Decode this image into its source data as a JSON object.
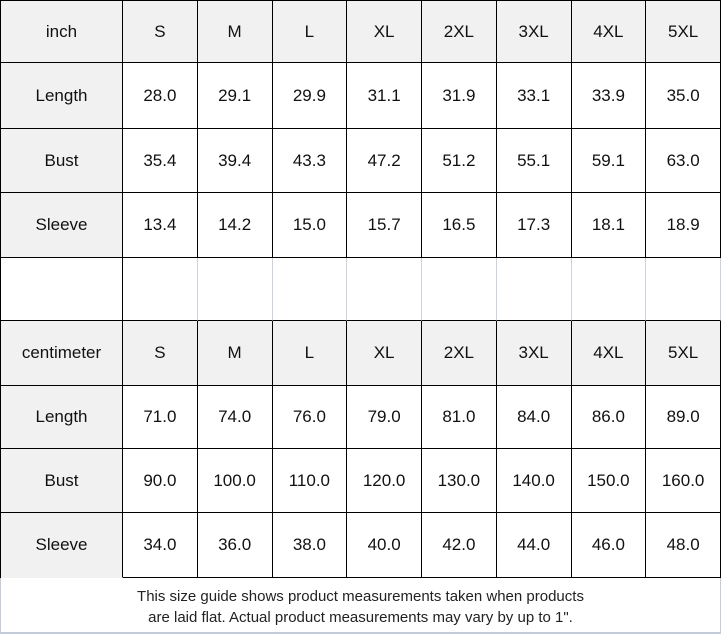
{
  "chart_data": [
    {
      "type": "table",
      "unit": "inch",
      "columns": [
        "S",
        "M",
        "L",
        "XL",
        "2XL",
        "3XL",
        "4XL",
        "5XL"
      ],
      "rows": [
        {
          "label": "Length",
          "values": [
            "28.0",
            "29.1",
            "29.9",
            "31.1",
            "31.9",
            "33.1",
            "33.9",
            "35.0"
          ]
        },
        {
          "label": "Bust",
          "values": [
            "35.4",
            "39.4",
            "43.3",
            "47.2",
            "51.2",
            "55.1",
            "59.1",
            "63.0"
          ]
        },
        {
          "label": "Sleeve",
          "values": [
            "13.4",
            "14.2",
            "15.0",
            "15.7",
            "16.5",
            "17.3",
            "18.1",
            "18.9"
          ]
        }
      ]
    },
    {
      "type": "table",
      "unit": "centimeter",
      "columns": [
        "S",
        "M",
        "L",
        "XL",
        "2XL",
        "3XL",
        "4XL",
        "5XL"
      ],
      "rows": [
        {
          "label": "Length",
          "values": [
            "71.0",
            "74.0",
            "76.0",
            "79.0",
            "81.0",
            "84.0",
            "86.0",
            "89.0"
          ]
        },
        {
          "label": "Bust",
          "values": [
            "90.0",
            "100.0",
            "110.0",
            "120.0",
            "130.0",
            "140.0",
            "150.0",
            "160.0"
          ]
        },
        {
          "label": "Sleeve",
          "values": [
            "34.0",
            "36.0",
            "38.0",
            "40.0",
            "42.0",
            "44.0",
            "46.0",
            "48.0"
          ]
        }
      ]
    }
  ],
  "footer": {
    "line1": "This size guide shows product measurements taken when products",
    "line2": "are laid flat. Actual product measurements may vary by up to 1\"."
  },
  "colors": {
    "header_bg": "#f1f1f1",
    "border_dark": "#000000",
    "border_light": "#c9d2de"
  }
}
